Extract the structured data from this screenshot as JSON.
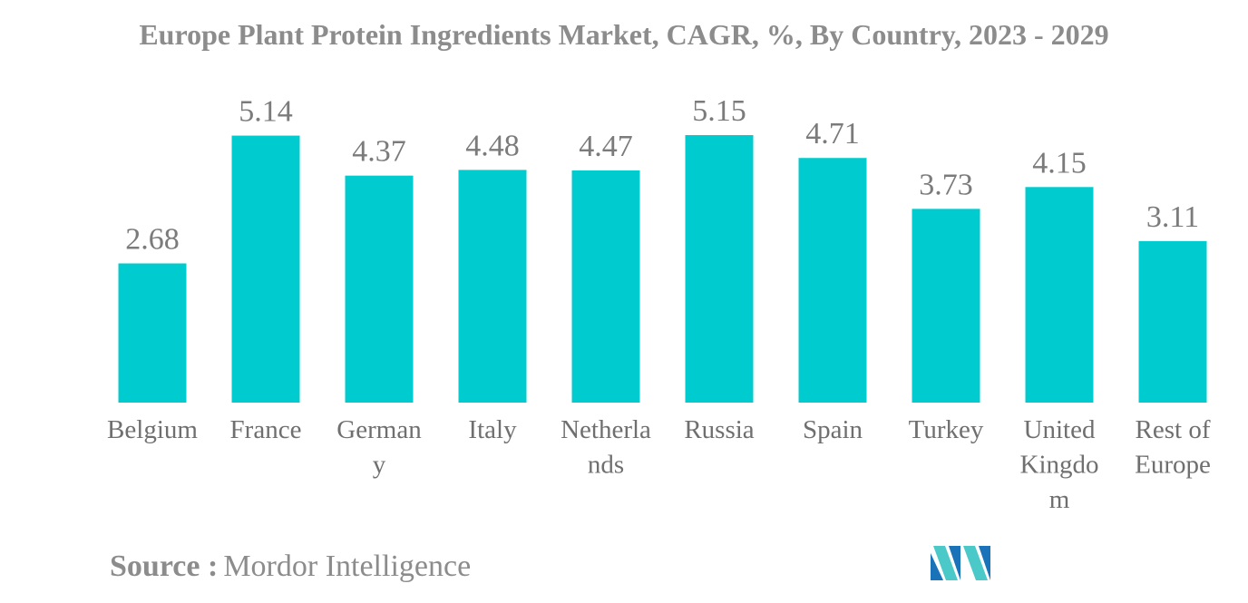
{
  "chart_data": {
    "type": "bar",
    "title": "Europe Plant Protein Ingredients Market, CAGR, %, By Country, 2023 - 2029",
    "categories": [
      "Belgium",
      "France",
      "Germany",
      "Italy",
      "Netherlands",
      "Russia",
      "Spain",
      "Turkey",
      "United Kingdom",
      "Rest of Europe"
    ],
    "category_label_lines": [
      [
        "Belgium"
      ],
      [
        "France"
      ],
      [
        "German",
        "y"
      ],
      [
        "Italy"
      ],
      [
        "Netherla",
        "nds"
      ],
      [
        "Russia"
      ],
      [
        "Spain"
      ],
      [
        "Turkey"
      ],
      [
        "United",
        "Kingdo",
        "m"
      ],
      [
        "Rest of",
        "Europe"
      ]
    ],
    "values": [
      2.68,
      5.14,
      4.37,
      4.48,
      4.47,
      5.15,
      4.71,
      3.73,
      4.15,
      3.11
    ],
    "xlabel": "",
    "ylabel": "",
    "ylim": [
      0,
      5.15
    ],
    "grid": false,
    "legend": "none",
    "bar_color": "#00cccf",
    "data_labels": true
  },
  "source": {
    "label": "Source :",
    "value": "Mordor Intelligence"
  },
  "logo": {
    "icon": "mordor-intelligence-logo-icon",
    "colors": [
      "#1a73b8",
      "#4bc9c9"
    ]
  }
}
